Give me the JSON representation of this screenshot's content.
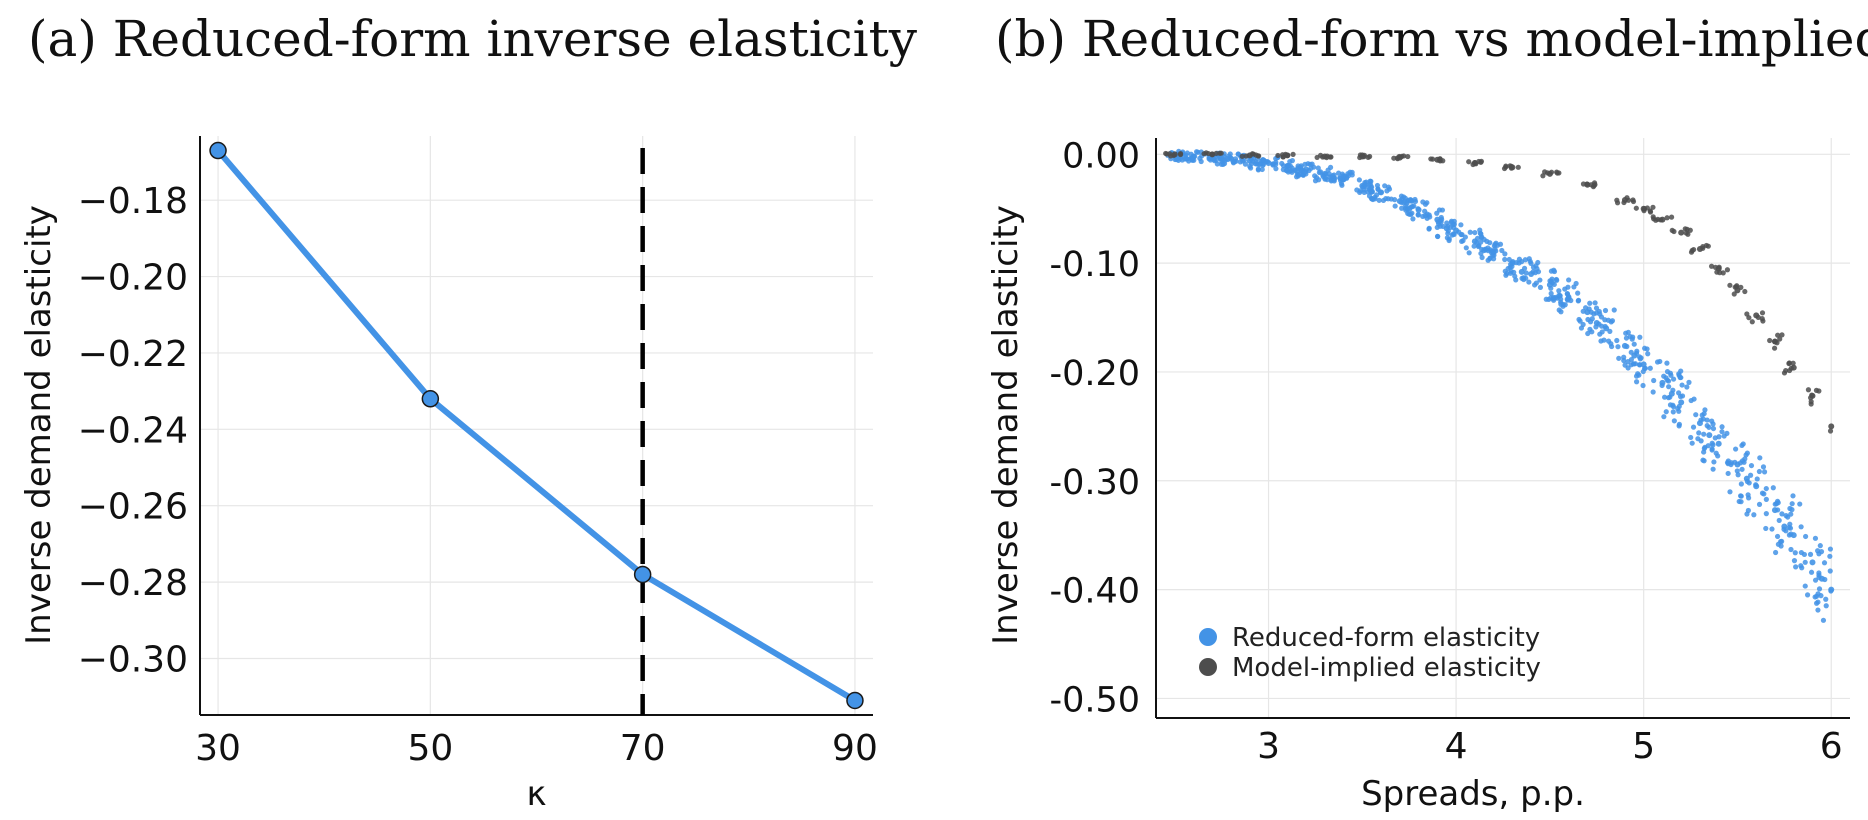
{
  "panels": {
    "a": {
      "title": "(a) Reduced-form inverse elasticity"
    },
    "b": {
      "title": "(b) Reduced-form vs model-implied"
    }
  },
  "colors": {
    "blue": "#4393e6",
    "gray": "#4d4d4d",
    "dashed": "#000000"
  },
  "chart_data": [
    {
      "type": "line",
      "title": "(a) Reduced-form inverse elasticity",
      "xlabel": "κ",
      "ylabel": "Inverse demand elasticity",
      "x": [
        30,
        50,
        70,
        90
      ],
      "series": [
        {
          "values": [
            -0.167,
            -0.232,
            -0.278,
            -0.311
          ],
          "color": "#4393e6",
          "markers": true
        }
      ],
      "xticks": [
        30,
        50,
        70,
        90
      ],
      "xtick_labels": [
        "30",
        "50",
        "70",
        "90"
      ],
      "yticks": [
        -0.3,
        -0.28,
        -0.26,
        -0.24,
        -0.22,
        -0.2,
        -0.18
      ],
      "ytick_labels": [
        "−0.30",
        "−0.28",
        "−0.26",
        "−0.24",
        "−0.22",
        "−0.20",
        "−0.18"
      ],
      "xlim": [
        28.3,
        91.7
      ],
      "ylim": [
        -0.3148,
        -0.1632
      ],
      "vline": {
        "x": 70,
        "style": "dashed"
      },
      "grid": true
    },
    {
      "type": "scatter",
      "title": "(b) Reduced-form vs model-implied",
      "xlabel": "Spreads, p.p.",
      "ylabel": "Inverse demand elasticity",
      "xticks": [
        3,
        4,
        5,
        6
      ],
      "xtick_labels": [
        "3",
        "4",
        "5",
        "6"
      ],
      "yticks": [
        0.0,
        -0.1,
        -0.2,
        -0.3,
        -0.4,
        -0.5
      ],
      "ytick_labels": [
        "0.00",
        "-0.10",
        "-0.20",
        "-0.30",
        "-0.40",
        "-0.50"
      ],
      "xlim": [
        2.4,
        6.1
      ],
      "ylim": [
        -0.518,
        0.015
      ],
      "grid": true,
      "legend_position": "bottom-left",
      "series": [
        {
          "name": "Reduced-form elasticity",
          "color": "#4393e6",
          "points": [
            [
              2.5,
              -0.001
            ],
            [
              2.6,
              -0.002
            ],
            [
              2.7,
              -0.003
            ],
            [
              2.8,
              -0.004
            ],
            [
              2.9,
              -0.006
            ],
            [
              3.0,
              -0.008
            ],
            [
              3.1,
              -0.011
            ],
            [
              3.2,
              -0.014
            ],
            [
              3.3,
              -0.018
            ],
            [
              3.4,
              -0.023
            ],
            [
              3.5,
              -0.029
            ],
            [
              3.6,
              -0.035
            ],
            [
              3.7,
              -0.043
            ],
            [
              3.8,
              -0.051
            ],
            [
              3.9,
              -0.06
            ],
            [
              4.0,
              -0.07
            ],
            [
              4.1,
              -0.08
            ],
            [
              4.2,
              -0.09
            ],
            [
              4.3,
              -0.1
            ],
            [
              4.4,
              -0.11
            ],
            [
              4.5,
              -0.12
            ],
            [
              4.6,
              -0.132
            ],
            [
              4.7,
              -0.145
            ],
            [
              4.8,
              -0.16
            ],
            [
              4.9,
              -0.176
            ],
            [
              5.0,
              -0.193
            ],
            [
              5.1,
              -0.21
            ],
            [
              5.2,
              -0.228
            ],
            [
              5.3,
              -0.247
            ],
            [
              5.4,
              -0.266
            ],
            [
              5.5,
              -0.285
            ],
            [
              5.6,
              -0.305
            ],
            [
              5.7,
              -0.327
            ],
            [
              5.8,
              -0.35
            ],
            [
              5.9,
              -0.375
            ],
            [
              6.0,
              -0.4
            ],
            [
              2.55,
              -0.002
            ],
            [
              2.75,
              -0.004
            ],
            [
              2.95,
              -0.009
            ],
            [
              3.15,
              -0.015
            ],
            [
              3.35,
              -0.022
            ],
            [
              3.55,
              -0.034
            ],
            [
              3.75,
              -0.05
            ],
            [
              3.95,
              -0.068
            ],
            [
              4.15,
              -0.088
            ],
            [
              4.35,
              -0.108
            ],
            [
              4.55,
              -0.13
            ],
            [
              4.75,
              -0.155
            ],
            [
              4.95,
              -0.185
            ],
            [
              5.15,
              -0.22
            ],
            [
              5.35,
              -0.258
            ],
            [
              5.55,
              -0.298
            ],
            [
              5.75,
              -0.342
            ],
            [
              5.95,
              -0.39
            ]
          ]
        },
        {
          "name": "Model-implied elasticity",
          "color": "#4d4d4d",
          "points": [
            [
              2.5,
              0.0
            ],
            [
              2.7,
              0.0
            ],
            [
              2.9,
              -0.001
            ],
            [
              3.1,
              -0.001
            ],
            [
              3.3,
              -0.002
            ],
            [
              3.5,
              -0.002
            ],
            [
              3.7,
              -0.003
            ],
            [
              3.9,
              -0.005
            ],
            [
              4.1,
              -0.008
            ],
            [
              4.3,
              -0.012
            ],
            [
              4.5,
              -0.018
            ],
            [
              4.7,
              -0.028
            ],
            [
              4.9,
              -0.042
            ],
            [
              5.0,
              -0.05
            ],
            [
              5.1,
              -0.06
            ],
            [
              5.2,
              -0.072
            ],
            [
              5.3,
              -0.087
            ],
            [
              5.4,
              -0.105
            ],
            [
              5.5,
              -0.125
            ],
            [
              5.6,
              -0.148
            ],
            [
              5.7,
              -0.172
            ],
            [
              5.8,
              -0.196
            ],
            [
              5.9,
              -0.222
            ],
            [
              6.0,
              -0.25
            ]
          ]
        }
      ]
    }
  ]
}
